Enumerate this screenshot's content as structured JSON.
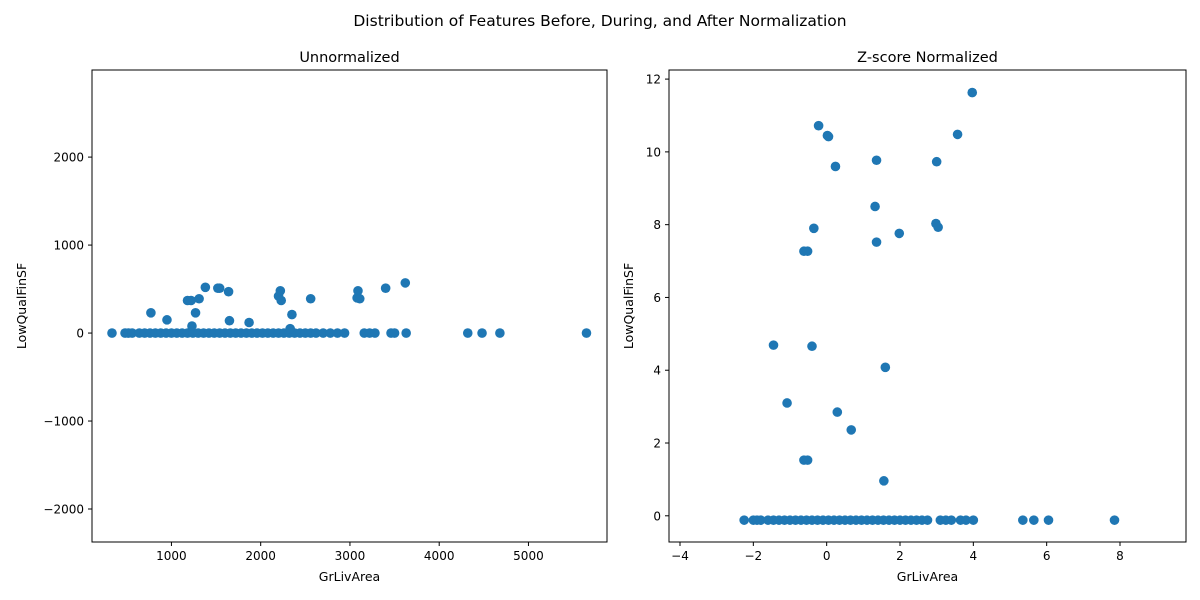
{
  "figure_title": "Distribution of Features Before, During, and After Normalization",
  "colors": {
    "points": "#1f77b4",
    "axes": "#000000",
    "background": "#ffffff"
  },
  "chart_data": [
    {
      "type": "scatter",
      "title": "Unnormalized",
      "xlabel": "GrLivArea",
      "ylabel": "LowQualFinSF",
      "xlim": [
        110,
        5880
      ],
      "ylim": [
        -2375,
        2990
      ],
      "xticks": [
        1000,
        2000,
        3000,
        4000,
        5000
      ],
      "yticks": [
        -2000,
        -1000,
        0,
        1000,
        2000
      ],
      "xtick_labels": [
        "1000",
        "2000",
        "3000",
        "4000",
        "5000"
      ],
      "ytick_labels": [
        "−2000",
        "−1000",
        "0",
        "1000",
        "2000"
      ],
      "points": [
        {
          "x": 334,
          "y": 0
        },
        {
          "x": 480,
          "y": 0
        },
        {
          "x": 520,
          "y": 0
        },
        {
          "x": 560,
          "y": 0
        },
        {
          "x": 640,
          "y": 0
        },
        {
          "x": 700,
          "y": 0
        },
        {
          "x": 760,
          "y": 0
        },
        {
          "x": 820,
          "y": 0
        },
        {
          "x": 880,
          "y": 0
        },
        {
          "x": 940,
          "y": 0
        },
        {
          "x": 1000,
          "y": 0
        },
        {
          "x": 1060,
          "y": 0
        },
        {
          "x": 1120,
          "y": 0
        },
        {
          "x": 1180,
          "y": 0
        },
        {
          "x": 1240,
          "y": 0
        },
        {
          "x": 1300,
          "y": 0
        },
        {
          "x": 1360,
          "y": 0
        },
        {
          "x": 1420,
          "y": 0
        },
        {
          "x": 1480,
          "y": 0
        },
        {
          "x": 1540,
          "y": 0
        },
        {
          "x": 1600,
          "y": 0
        },
        {
          "x": 1660,
          "y": 0
        },
        {
          "x": 1720,
          "y": 0
        },
        {
          "x": 1780,
          "y": 0
        },
        {
          "x": 1840,
          "y": 0
        },
        {
          "x": 1900,
          "y": 0
        },
        {
          "x": 1960,
          "y": 0
        },
        {
          "x": 2020,
          "y": 0
        },
        {
          "x": 2080,
          "y": 0
        },
        {
          "x": 2140,
          "y": 0
        },
        {
          "x": 2200,
          "y": 0
        },
        {
          "x": 2260,
          "y": 0
        },
        {
          "x": 2320,
          "y": 0
        },
        {
          "x": 2380,
          "y": 0
        },
        {
          "x": 2440,
          "y": 0
        },
        {
          "x": 2500,
          "y": 0
        },
        {
          "x": 2560,
          "y": 0
        },
        {
          "x": 2620,
          "y": 0
        },
        {
          "x": 2700,
          "y": 0
        },
        {
          "x": 2780,
          "y": 0
        },
        {
          "x": 2860,
          "y": 0
        },
        {
          "x": 2940,
          "y": 0
        },
        {
          "x": 3160,
          "y": 0
        },
        {
          "x": 3220,
          "y": 0
        },
        {
          "x": 3280,
          "y": 0
        },
        {
          "x": 3460,
          "y": 0
        },
        {
          "x": 3500,
          "y": 0
        },
        {
          "x": 3630,
          "y": 0
        },
        {
          "x": 4320,
          "y": 0
        },
        {
          "x": 4480,
          "y": 0
        },
        {
          "x": 4680,
          "y": 0
        },
        {
          "x": 5650,
          "y": 0
        },
        {
          "x": 770,
          "y": 230
        },
        {
          "x": 950,
          "y": 150
        },
        {
          "x": 1180,
          "y": 370
        },
        {
          "x": 1220,
          "y": 370
        },
        {
          "x": 1230,
          "y": 80
        },
        {
          "x": 1270,
          "y": 230
        },
        {
          "x": 1310,
          "y": 390
        },
        {
          "x": 1380,
          "y": 520
        },
        {
          "x": 1520,
          "y": 510
        },
        {
          "x": 1540,
          "y": 510
        },
        {
          "x": 1640,
          "y": 470
        },
        {
          "x": 1650,
          "y": 140
        },
        {
          "x": 1870,
          "y": 120
        },
        {
          "x": 2200,
          "y": 420
        },
        {
          "x": 2220,
          "y": 480
        },
        {
          "x": 2230,
          "y": 370
        },
        {
          "x": 2330,
          "y": 50
        },
        {
          "x": 2350,
          "y": 210
        },
        {
          "x": 2560,
          "y": 390
        },
        {
          "x": 3080,
          "y": 400
        },
        {
          "x": 3090,
          "y": 480
        },
        {
          "x": 3110,
          "y": 390
        },
        {
          "x": 3400,
          "y": 510
        },
        {
          "x": 3620,
          "y": 570
        }
      ]
    },
    {
      "type": "scatter",
      "title": "Z-score Normalized",
      "xlabel": "GrLivArea",
      "ylabel": "LowQualFinSF",
      "xlim": [
        -4.3,
        9.8
      ],
      "ylim": [
        -0.72,
        12.25
      ],
      "xticks": [
        -4,
        -2,
        0,
        2,
        4,
        6,
        8
      ],
      "yticks": [
        0,
        2,
        4,
        6,
        8,
        10,
        12
      ],
      "xtick_labels": [
        "−4",
        "−2",
        "0",
        "2",
        "4",
        "6",
        "8"
      ],
      "ytick_labels": [
        "0",
        "2",
        "4",
        "6",
        "8",
        "10",
        "12"
      ],
      "points": [
        {
          "x": -2.25,
          "y": -0.12
        },
        {
          "x": -2.0,
          "y": -0.12
        },
        {
          "x": -1.9,
          "y": -0.12
        },
        {
          "x": -1.8,
          "y": -0.12
        },
        {
          "x": -1.6,
          "y": -0.12
        },
        {
          "x": -1.45,
          "y": -0.12
        },
        {
          "x": -1.3,
          "y": -0.12
        },
        {
          "x": -1.15,
          "y": -0.12
        },
        {
          "x": -1.0,
          "y": -0.12
        },
        {
          "x": -0.85,
          "y": -0.12
        },
        {
          "x": -0.7,
          "y": -0.12
        },
        {
          "x": -0.55,
          "y": -0.12
        },
        {
          "x": -0.4,
          "y": -0.12
        },
        {
          "x": -0.25,
          "y": -0.12
        },
        {
          "x": -0.1,
          "y": -0.12
        },
        {
          "x": 0.05,
          "y": -0.12
        },
        {
          "x": 0.2,
          "y": -0.12
        },
        {
          "x": 0.35,
          "y": -0.12
        },
        {
          "x": 0.5,
          "y": -0.12
        },
        {
          "x": 0.65,
          "y": -0.12
        },
        {
          "x": 0.8,
          "y": -0.12
        },
        {
          "x": 0.95,
          "y": -0.12
        },
        {
          "x": 1.1,
          "y": -0.12
        },
        {
          "x": 1.25,
          "y": -0.12
        },
        {
          "x": 1.4,
          "y": -0.12
        },
        {
          "x": 1.55,
          "y": -0.12
        },
        {
          "x": 1.7,
          "y": -0.12
        },
        {
          "x": 1.85,
          "y": -0.12
        },
        {
          "x": 2.0,
          "y": -0.12
        },
        {
          "x": 2.15,
          "y": -0.12
        },
        {
          "x": 2.3,
          "y": -0.12
        },
        {
          "x": 2.45,
          "y": -0.12
        },
        {
          "x": 2.6,
          "y": -0.12
        },
        {
          "x": 2.75,
          "y": -0.12
        },
        {
          "x": 3.1,
          "y": -0.12
        },
        {
          "x": 3.25,
          "y": -0.12
        },
        {
          "x": 3.4,
          "y": -0.12
        },
        {
          "x": 3.65,
          "y": -0.12
        },
        {
          "x": 3.8,
          "y": -0.12
        },
        {
          "x": 4.0,
          "y": -0.12
        },
        {
          "x": 5.35,
          "y": -0.12
        },
        {
          "x": 5.65,
          "y": -0.12
        },
        {
          "x": 6.05,
          "y": -0.12
        },
        {
          "x": 7.85,
          "y": -0.12
        },
        {
          "x": -0.22,
          "y": 10.72
        },
        {
          "x": 0.02,
          "y": 10.45
        },
        {
          "x": 0.05,
          "y": 10.42
        },
        {
          "x": 3.57,
          "y": 10.48
        },
        {
          "x": 3.97,
          "y": 11.63
        },
        {
          "x": 0.24,
          "y": 9.6
        },
        {
          "x": 1.36,
          "y": 9.77
        },
        {
          "x": 3.0,
          "y": 9.73
        },
        {
          "x": 1.32,
          "y": 8.5
        },
        {
          "x": 2.98,
          "y": 8.03
        },
        {
          "x": 3.04,
          "y": 7.93
        },
        {
          "x": -0.35,
          "y": 7.9
        },
        {
          "x": 1.98,
          "y": 7.76
        },
        {
          "x": 1.36,
          "y": 7.52
        },
        {
          "x": -0.62,
          "y": 7.27
        },
        {
          "x": -0.52,
          "y": 7.27
        },
        {
          "x": -1.45,
          "y": 4.69
        },
        {
          "x": -0.4,
          "y": 4.66
        },
        {
          "x": 1.6,
          "y": 4.08
        },
        {
          "x": -1.08,
          "y": 3.1
        },
        {
          "x": 0.29,
          "y": 2.85
        },
        {
          "x": 0.67,
          "y": 2.36
        },
        {
          "x": -0.62,
          "y": 1.53
        },
        {
          "x": -0.52,
          "y": 1.53
        },
        {
          "x": 1.56,
          "y": 0.96
        }
      ]
    }
  ]
}
